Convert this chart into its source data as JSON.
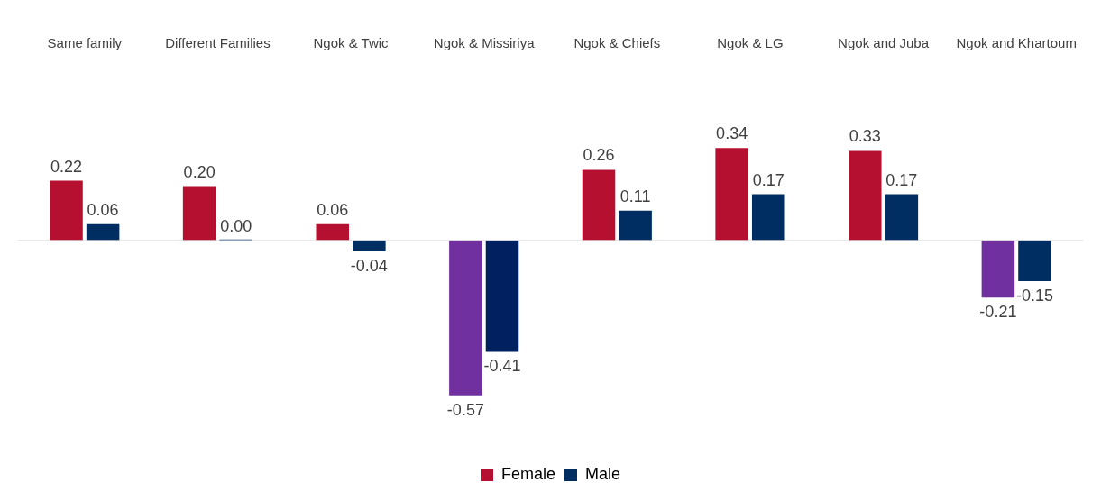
{
  "chart_data": {
    "type": "bar",
    "categories": [
      "Same family",
      "Different Families",
      "Ngok & Twic",
      "Ngok & Missiriya",
      "Ngok & Chiefs",
      "Ngok & LG",
      "Ngok and Juba",
      "Ngok and Khartoum"
    ],
    "series": [
      {
        "name": "Female",
        "color": "#b5102f",
        "colors": [
          "#b5102f",
          "#b5102f",
          "#b5102f",
          "#7030a0",
          "#b5102f",
          "#b5102f",
          "#b5102f",
          "#7030a0"
        ],
        "values": [
          0.22,
          0.2,
          0.06,
          -0.57,
          0.26,
          0.34,
          0.33,
          -0.21
        ],
        "value_labels": [
          "0.22",
          "0.20",
          "0.06",
          "-0.57",
          "0.26",
          "0.34",
          "0.33",
          "-0.21"
        ]
      },
      {
        "name": "Male",
        "color": "#002d62",
        "colors": [
          "#002d62",
          "#002d62",
          "#002d62",
          "#002060",
          "#002d62",
          "#002d62",
          "#002d62",
          "#002d62"
        ],
        "values": [
          0.06,
          0.0,
          -0.04,
          -0.41,
          0.11,
          0.17,
          0.17,
          -0.15
        ],
        "value_labels": [
          "0.06",
          "0.00",
          "-0.04",
          "-0.41",
          "0.11",
          "0.17",
          "0.17",
          "-0.15"
        ]
      }
    ],
    "legend": "bottom"
  }
}
